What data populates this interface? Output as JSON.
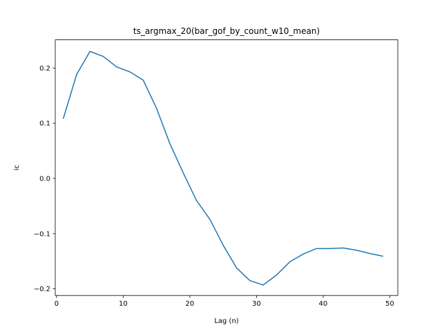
{
  "chart_data": {
    "type": "line",
    "title": "ts_argmax_20(bar_gof_by_count_w10_mean)",
    "xlabel": "Lag (n)",
    "ylabel": "ic",
    "xlim": [
      -0.2,
      51.2
    ],
    "ylim": [
      -0.212,
      0.251
    ],
    "xticks": [
      0,
      10,
      20,
      30,
      40,
      50
    ],
    "yticks": [
      -0.2,
      -0.1,
      0.0,
      0.1,
      0.2
    ],
    "ytick_labels": [
      "−0.2",
      "−0.1",
      "0.0",
      "0.1",
      "0.2"
    ],
    "grid": false,
    "line_color": "#1f77b4",
    "series": [
      {
        "x": [
          1,
          3,
          5,
          7,
          9,
          11,
          13,
          15,
          17,
          19,
          21,
          23,
          25,
          27,
          29,
          31,
          33,
          35,
          37,
          39,
          41,
          43,
          45,
          47,
          49
        ],
        "y": [
          0.108,
          0.188,
          0.23,
          0.221,
          0.202,
          0.193,
          0.178,
          0.127,
          0.063,
          0.01,
          -0.04,
          -0.074,
          -0.121,
          -0.162,
          -0.185,
          -0.193,
          -0.175,
          -0.151,
          -0.137,
          -0.127,
          -0.127,
          -0.126,
          -0.13,
          -0.136,
          -0.141
        ]
      }
    ]
  }
}
